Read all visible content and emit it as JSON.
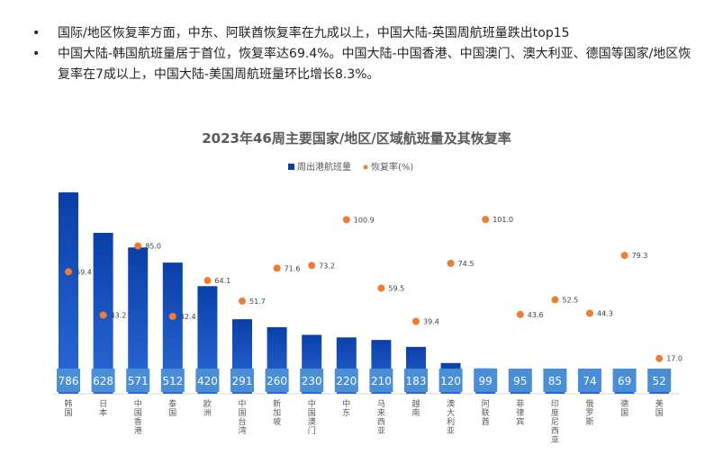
{
  "bullets": [
    "国际/地区恢复率方面，中东、阿联酋恢复率在九成以上，中国大陆-英国周航班量跌出top15",
    "中国大陆-韩国航班量居于首位，恢复率达69.4%。中国大陆-中国香港、中国澳门、澳大利亚、德国等国家/地区恢复率在7成以上，中国大陆-美国周航班量环比增长8.3%。"
  ],
  "bullet_symbol": "•",
  "chart_data": {
    "type": "bar",
    "title": "2023年46周主要国家/地区/区域航班量及其恢复率",
    "categories": [
      "韩国",
      "日本",
      "中国香港",
      "泰国",
      "欧洲",
      "中国台湾",
      "新加坡",
      "中国澳门",
      "中东",
      "马来西亚",
      "越南",
      "澳大利亚",
      "阿联酋",
      "菲律宾",
      "印度尼西亚",
      "俄罗斯",
      "德国",
      "美国"
    ],
    "series": [
      {
        "name": "周出港航班量",
        "type": "bar",
        "color": "#0a3fa8",
        "values": [
          786,
          628,
          571,
          512,
          420,
          291,
          260,
          230,
          220,
          210,
          183,
          120,
          99,
          95,
          85,
          74,
          69,
          52
        ]
      },
      {
        "name": "恢复率(%)",
        "type": "scatter",
        "color": "#ed7d31",
        "values": [
          69.4,
          43.2,
          85.0,
          42.4,
          64.1,
          51.7,
          71.6,
          73.2,
          100.9,
          59.5,
          39.4,
          74.5,
          101.0,
          43.6,
          52.5,
          44.3,
          79.3,
          17.0
        ]
      }
    ],
    "value_labels": {
      "bars": [
        "786",
        "628",
        "571",
        "512",
        "420",
        "291",
        "260",
        "230",
        "220",
        "210",
        "183",
        "120",
        "99",
        "95",
        "85",
        "74",
        "69",
        "52"
      ],
      "rates": [
        "69.4",
        "43.2",
        "85.0",
        "42.4",
        "64.1",
        "51.7",
        "71.6",
        "73.2",
        "100.9",
        "59.5",
        "39.4",
        "74.5",
        "101.0",
        "43.6",
        "52.5",
        "44.3",
        "79.3",
        "17.0"
      ]
    },
    "legend_position": "top-center",
    "grid": false,
    "bar_ylim": [
      0,
      786
    ],
    "rate_ylim": [
      0,
      120
    ]
  }
}
